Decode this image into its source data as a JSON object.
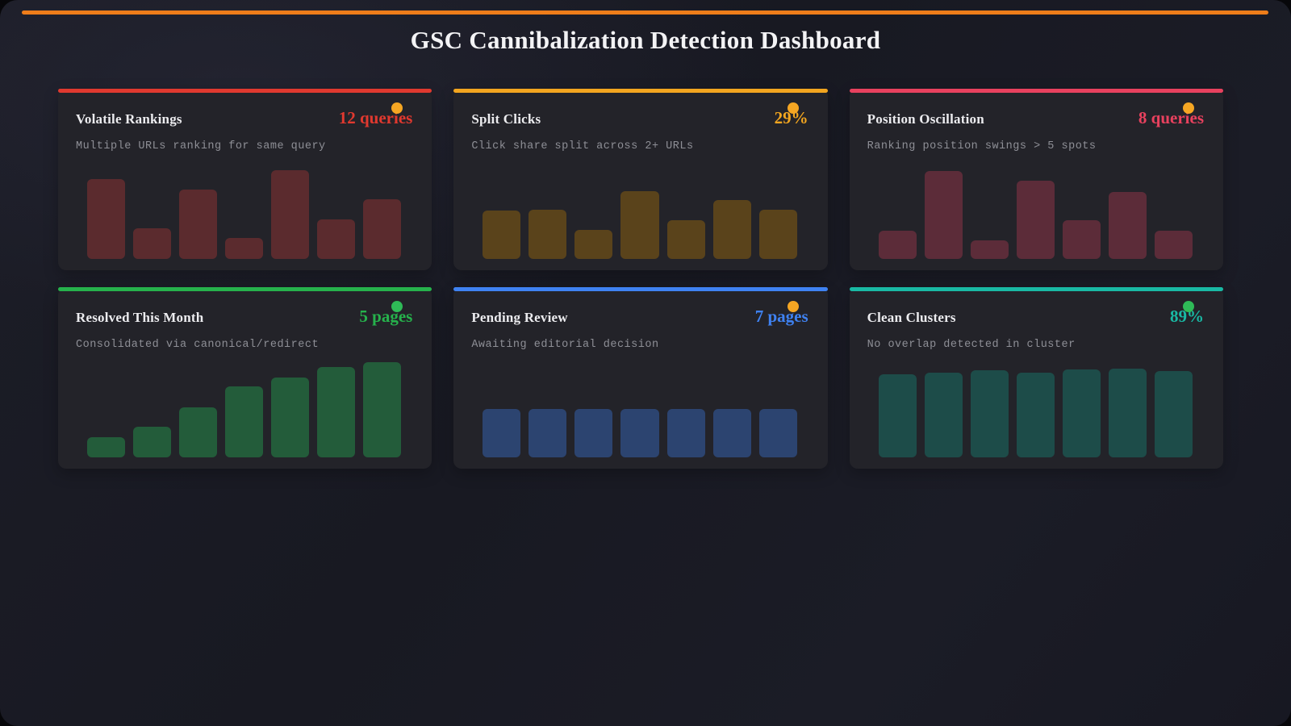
{
  "page": {
    "title": "GSC Cannibalization Detection Dashboard",
    "top_bar_color": "#ee7d1a"
  },
  "cards": [
    {
      "id": "volatile-rankings",
      "title": "Volatile Rankings",
      "value": "12 queries",
      "subtitle": "Multiple URLs ranking for same query",
      "accent_color": "#e0392f",
      "bar_color": "#5b2b2e",
      "dot_color": "#f5a623"
    },
    {
      "id": "split-clicks",
      "title": "Split Clicks",
      "value": "29%",
      "subtitle": "Click share split across 2+ URLs",
      "accent_color": "#f2a51f",
      "bar_color": "#5a431b",
      "dot_color": "#f5a623"
    },
    {
      "id": "position-oscillation",
      "title": "Position Oscillation",
      "value": "8 queries",
      "subtitle": "Ranking position swings > 5 spots",
      "accent_color": "#e8415e",
      "bar_color": "#5c2c39",
      "dot_color": "#f5a623"
    },
    {
      "id": "resolved-this-month",
      "title": "Resolved This Month",
      "value": "5 pages",
      "subtitle": "Consolidated via canonical/redirect",
      "accent_color": "#26b24c",
      "bar_color": "#235c3a",
      "dot_color": "#2fba57"
    },
    {
      "id": "pending-review",
      "title": "Pending Review",
      "value": "7 pages",
      "subtitle": "Awaiting editorial decision",
      "accent_color": "#3f82f2",
      "bar_color": "#2c4470",
      "dot_color": "#f5a623"
    },
    {
      "id": "clean-clusters",
      "title": "Clean Clusters",
      "value": "89%",
      "subtitle": "No overlap detected in cluster",
      "accent_color": "#19b9a4",
      "bar_color": "#1d4c49",
      "dot_color": "#2fba57"
    }
  ],
  "chart_data": [
    {
      "type": "bar",
      "title": "Volatile Rankings",
      "values": [
        76,
        29,
        66,
        20,
        85,
        38,
        57
      ],
      "ylim": [
        0,
        100
      ],
      "note": "unlabeled sparkline bars, heights in % of chart area"
    },
    {
      "type": "bar",
      "title": "Split Clicks",
      "values": [
        46,
        47,
        28,
        65,
        37,
        56,
        47
      ],
      "ylim": [
        0,
        100
      ],
      "note": "unlabeled sparkline bars, heights in % of chart area"
    },
    {
      "type": "bar",
      "title": "Position Oscillation",
      "values": [
        27,
        84,
        18,
        75,
        37,
        64,
        27
      ],
      "ylim": [
        0,
        100
      ],
      "note": "unlabeled sparkline bars, heights in % of chart area"
    },
    {
      "type": "bar",
      "title": "Resolved This Month",
      "values": [
        19,
        29,
        48,
        68,
        76,
        86,
        91
      ],
      "ylim": [
        0,
        100
      ],
      "note": "unlabeled sparkline bars, heights in % of chart area"
    },
    {
      "type": "bar",
      "title": "Pending Review",
      "values": [
        46,
        46,
        46,
        46,
        46,
        46,
        46
      ],
      "ylim": [
        0,
        100
      ],
      "note": "unlabeled sparkline bars, heights in % of chart area"
    },
    {
      "type": "bar",
      "title": "Clean Clusters",
      "values": [
        79,
        81,
        83,
        81,
        84,
        85,
        82
      ],
      "ylim": [
        0,
        100
      ],
      "note": "unlabeled sparkline bars, heights in % of chart area"
    }
  ]
}
